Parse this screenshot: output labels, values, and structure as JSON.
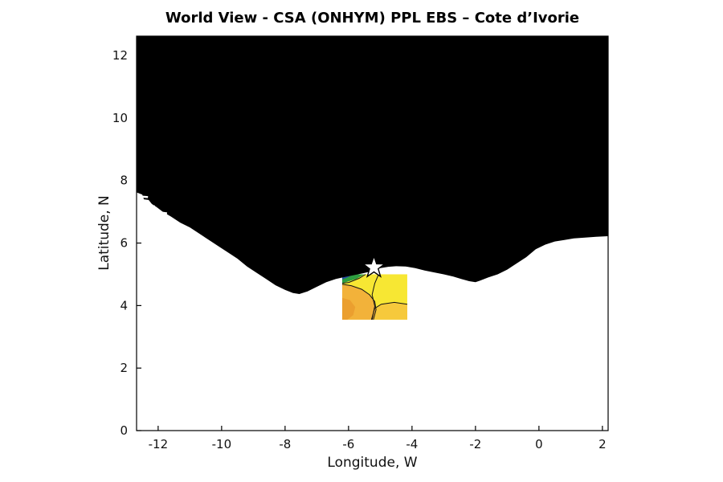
{
  "figure": {
    "background": "#ffffff"
  },
  "chart_data": {
    "type": "map",
    "title": "World View - CSA (ONHYM) PPL EBS  – Cote d’Ivorie",
    "xlabel": "Longitude, W",
    "ylabel": "Latitude, N",
    "xlim": [
      -12.68,
      2.18
    ],
    "ylim": [
      0,
      12.62
    ],
    "xticks": [
      -12,
      -10,
      -8,
      -6,
      -4,
      -2,
      0,
      2
    ],
    "yticks": [
      0,
      2,
      4,
      6,
      8,
      10,
      12
    ],
    "grid": false,
    "axes_color": "#000000",
    "land_color": "#000000",
    "coastline": [
      [
        -12.68,
        7.62
      ],
      [
        -12.5,
        7.55
      ],
      [
        -12.45,
        7.4
      ],
      [
        -12.3,
        7.38
      ],
      [
        -12.2,
        7.25
      ],
      [
        -12.05,
        7.15
      ],
      [
        -11.85,
        7.0
      ],
      [
        -11.6,
        6.85
      ],
      [
        -11.3,
        6.65
      ],
      [
        -11.0,
        6.5
      ],
      [
        -10.7,
        6.3
      ],
      [
        -10.4,
        6.1
      ],
      [
        -10.1,
        5.9
      ],
      [
        -9.8,
        5.7
      ],
      [
        -9.5,
        5.5
      ],
      [
        -9.2,
        5.25
      ],
      [
        -8.9,
        5.05
      ],
      [
        -8.6,
        4.85
      ],
      [
        -8.3,
        4.65
      ],
      [
        -8.0,
        4.5
      ],
      [
        -7.75,
        4.4
      ],
      [
        -7.55,
        4.37
      ],
      [
        -7.3,
        4.45
      ],
      [
        -7.0,
        4.6
      ],
      [
        -6.7,
        4.75
      ],
      [
        -6.4,
        4.85
      ],
      [
        -6.1,
        4.92
      ],
      [
        -5.8,
        4.98
      ],
      [
        -5.55,
        5.03
      ],
      [
        -5.35,
        5.08
      ],
      [
        -5.2,
        5.15
      ],
      [
        -5.0,
        5.2
      ],
      [
        -4.75,
        5.24
      ],
      [
        -4.5,
        5.26
      ],
      [
        -4.2,
        5.25
      ],
      [
        -3.9,
        5.2
      ],
      [
        -3.6,
        5.12
      ],
      [
        -3.3,
        5.06
      ],
      [
        -3.0,
        5.0
      ],
      [
        -2.7,
        4.93
      ],
      [
        -2.45,
        4.85
      ],
      [
        -2.2,
        4.78
      ],
      [
        -2.0,
        4.75
      ],
      [
        -1.85,
        4.8
      ],
      [
        -1.6,
        4.9
      ],
      [
        -1.3,
        5.0
      ],
      [
        -1.0,
        5.15
      ],
      [
        -0.7,
        5.35
      ],
      [
        -0.4,
        5.55
      ],
      [
        -0.1,
        5.8
      ],
      [
        0.2,
        5.95
      ],
      [
        0.5,
        6.05
      ],
      [
        0.8,
        6.1
      ],
      [
        1.1,
        6.15
      ],
      [
        1.5,
        6.18
      ],
      [
        1.8,
        6.2
      ],
      [
        2.18,
        6.22
      ]
    ],
    "inlets": [
      [
        [
          -12.68,
          7.5
        ],
        [
          -12.32,
          7.47
        ]
      ],
      [
        [
          -12.5,
          7.2
        ],
        [
          -12.1,
          7.17
        ]
      ],
      [
        [
          -11.95,
          6.98
        ],
        [
          -11.72,
          6.95
        ]
      ]
    ],
    "license_block": {
      "lon": [
        -6.2,
        -4.15
      ],
      "lat": [
        3.55,
        5.0
      ],
      "base_color": "#f7e733",
      "regions": [
        {
          "name": "orange-light-right",
          "color": "#f6c93c",
          "pts": [
            [
              0.45,
              1
            ],
            [
              0.5,
              0.75
            ],
            [
              0.6,
              0.66
            ],
            [
              0.8,
              0.62
            ],
            [
              1,
              0.66
            ],
            [
              1,
              1
            ]
          ]
        },
        {
          "name": "orange-main",
          "color": "#f2b23a",
          "pts": [
            [
              0,
              0.22
            ],
            [
              0.14,
              0.25
            ],
            [
              0.3,
              0.33
            ],
            [
              0.42,
              0.45
            ],
            [
              0.5,
              0.6
            ],
            [
              0.52,
              0.78
            ],
            [
              0.48,
              1
            ],
            [
              0,
              1
            ]
          ]
        },
        {
          "name": "orange-deep",
          "color": "#eb9f2f",
          "pts": [
            [
              0,
              0.52
            ],
            [
              0.12,
              0.57
            ],
            [
              0.2,
              0.72
            ],
            [
              0.17,
              0.9
            ],
            [
              0.08,
              1
            ],
            [
              0,
              1
            ]
          ]
        },
        {
          "name": "green-band",
          "color": "#2e9e40",
          "pts": [
            [
              0,
              0
            ],
            [
              0.34,
              0
            ],
            [
              0.22,
              0.1
            ],
            [
              0.06,
              0.17
            ],
            [
              0,
              0.2
            ]
          ]
        },
        {
          "name": "blue-patch",
          "color": "#274fa8",
          "pts": [
            [
              0,
              0
            ],
            [
              0.17,
              0
            ],
            [
              0.08,
              0.07
            ],
            [
              0,
              0.11
            ]
          ]
        }
      ],
      "contours": [
        {
          "name": "contour-orange-yellow",
          "color": "#141414",
          "pts": [
            [
              0,
              0.22
            ],
            [
              0.14,
              0.25
            ],
            [
              0.3,
              0.33
            ],
            [
              0.42,
              0.45
            ],
            [
              0.5,
              0.6
            ],
            [
              0.52,
              0.78
            ],
            [
              0.48,
              1
            ]
          ]
        },
        {
          "name": "contour-mid",
          "color": "#141414",
          "pts": [
            [
              0.56,
              0
            ],
            [
              0.5,
              0.2
            ],
            [
              0.46,
              0.45
            ],
            [
              0.5,
              0.7
            ],
            [
              0.46,
              1
            ]
          ]
        },
        {
          "name": "contour-green-edge",
          "color": "#141414",
          "pts": [
            [
              0,
              0.2
            ],
            [
              0.1,
              0.18
            ],
            [
              0.26,
              0.09
            ],
            [
              0.36,
              0
            ]
          ]
        },
        {
          "name": "contour-right",
          "color": "#141414",
          "pts": [
            [
              0.45,
              1
            ],
            [
              0.5,
              0.75
            ],
            [
              0.6,
              0.66
            ],
            [
              0.8,
              0.62
            ],
            [
              1,
              0.66
            ]
          ]
        }
      ]
    },
    "star_marker": {
      "lon": -5.2,
      "lat": 5.22,
      "fill": "#ffffff",
      "stroke": "#000000"
    }
  }
}
